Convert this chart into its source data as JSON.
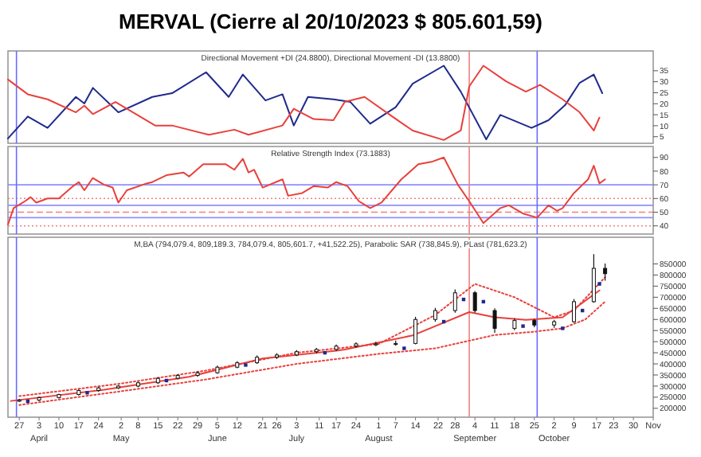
{
  "chart_data": [
    {
      "type": "line",
      "title": "MERVAL (Cierre al 20/10/2023 $ 805.601,59)",
      "subtitle": "Directional Movement +DI (24.8800), Directional Movement -DI (13.8800)",
      "xlim": [
        "2023-03-23",
        "2023-11-06"
      ],
      "ylim": [
        2,
        44
      ],
      "yticks": [
        5,
        10,
        15,
        20,
        25,
        30,
        35
      ],
      "tick_labels": "y",
      "series": [
        {
          "color": "#1f2a8c",
          "x": [
            "2023-03-23",
            "2023-03-30",
            "2023-04-06",
            "2023-04-16",
            "2023-04-19",
            "2023-04-22",
            "2023-05-01",
            "2023-05-13",
            "2023-05-20",
            "2023-06-01",
            "2023-06-09",
            "2023-06-14",
            "2023-06-22",
            "2023-06-28",
            "2023-07-02",
            "2023-07-07",
            "2023-07-16",
            "2023-07-22",
            "2023-07-29",
            "2023-08-07",
            "2023-08-13",
            "2023-08-24",
            "2023-08-30",
            "2023-09-08",
            "2023-09-13",
            "2023-09-24",
            "2023-09-30",
            "2023-10-06",
            "2023-10-11",
            "2023-10-16",
            "2023-10-19"
          ],
          "values": [
            4.2,
            14.2,
            9,
            23.1,
            20.1,
            27.2,
            16.1,
            23.1,
            24.8,
            34.3,
            23.1,
            33.3,
            21.5,
            24.3,
            10.1,
            23.1,
            22,
            20.8,
            10.9,
            18.4,
            29.1,
            37.3,
            25.5,
            3.8,
            14.9,
            9,
            12.5,
            19.6,
            29.5,
            33.3,
            24.8
          ]
        },
        {
          "color": "#e8413c",
          "x": [
            "2023-03-23",
            "2023-03-30",
            "2023-04-06",
            "2023-04-16",
            "2023-04-19",
            "2023-04-22",
            "2023-04-30",
            "2023-05-14",
            "2023-05-20",
            "2023-06-02",
            "2023-06-11",
            "2023-06-16",
            "2023-06-28",
            "2023-07-02",
            "2023-07-09",
            "2023-07-16",
            "2023-07-20",
            "2023-07-27",
            "2023-08-05",
            "2023-08-13",
            "2023-08-24",
            "2023-08-30",
            "2023-09-02",
            "2023-09-07",
            "2023-09-15",
            "2023-09-22",
            "2023-09-27",
            "2023-10-05",
            "2023-10-11",
            "2023-10-16",
            "2023-10-18"
          ],
          "values": [
            31,
            24.3,
            22,
            16.1,
            19.1,
            15.3,
            20.8,
            10.1,
            10.1,
            5.9,
            8.2,
            5.9,
            10.1,
            17.7,
            13,
            12.5,
            20.8,
            23.1,
            14.9,
            7.8,
            3.5,
            7.8,
            27.9,
            37.3,
            30.2,
            25.5,
            28.6,
            22,
            16.1,
            7.8,
            13.7
          ]
        }
      ],
      "ref_lines": [
        {
          "axis": "x",
          "value": "2023-03-26",
          "color": "#6b6bff"
        },
        {
          "axis": "x",
          "value": "2023-09-02",
          "color": "#f08080"
        },
        {
          "axis": "x",
          "value": "2023-09-26",
          "color": "#6b6bff"
        }
      ]
    },
    {
      "type": "line",
      "title": "Relative Strength Index (73.1883)",
      "xlim": [
        "2023-03-23",
        "2023-11-06"
      ],
      "ylim": [
        34,
        98
      ],
      "yticks": [
        40,
        50,
        60,
        70,
        80,
        90
      ],
      "tick_labels": "y",
      "series": [
        {
          "color": "#e8413c",
          "x": [
            "2023-03-23",
            "2023-03-25",
            "2023-03-29",
            "2023-03-31",
            "2023-04-02",
            "2023-04-06",
            "2023-04-10",
            "2023-04-15",
            "2023-04-17",
            "2023-04-19",
            "2023-04-22",
            "2023-04-26",
            "2023-04-29",
            "2023-05-01",
            "2023-05-04",
            "2023-05-11",
            "2023-05-13",
            "2023-05-18",
            "2023-05-24",
            "2023-05-26",
            "2023-05-31",
            "2023-06-08",
            "2023-06-11",
            "2023-06-14",
            "2023-06-16",
            "2023-06-18",
            "2023-06-21",
            "2023-06-28",
            "2023-06-30",
            "2023-07-05",
            "2023-07-09",
            "2023-07-14",
            "2023-07-17",
            "2023-07-21",
            "2023-07-25",
            "2023-07-29",
            "2023-08-02",
            "2023-08-09",
            "2023-08-15",
            "2023-08-20",
            "2023-08-24",
            "2023-08-29",
            "2023-09-02",
            "2023-09-07",
            "2023-09-13",
            "2023-09-16",
            "2023-09-21",
            "2023-09-26",
            "2023-09-30",
            "2023-10-03",
            "2023-10-05",
            "2023-10-09",
            "2023-10-14",
            "2023-10-16",
            "2023-10-18",
            "2023-10-20"
          ],
          "values": [
            41,
            53,
            58,
            61,
            57,
            60,
            60,
            69,
            72,
            66,
            75,
            70,
            68,
            57,
            66,
            71,
            72,
            77,
            79,
            76,
            85,
            85,
            81,
            89,
            79,
            81,
            68,
            74,
            62,
            64,
            69,
            68,
            72,
            69,
            58,
            53,
            57,
            74,
            85,
            87,
            90,
            70,
            58,
            42,
            53,
            55,
            49,
            46,
            55,
            51,
            53,
            64,
            74,
            84,
            71,
            74
          ]
        }
      ],
      "ref_lines": [
        {
          "axis": "y",
          "value": 70,
          "color": "#8f8fff"
        },
        {
          "axis": "y",
          "value": 60,
          "color": "#f08080",
          "line_style": "dotted"
        },
        {
          "axis": "y",
          "value": 55,
          "color": "#8f8fff"
        },
        {
          "axis": "y",
          "value": 50,
          "color": "#f08080",
          "line_style": "dashed"
        },
        {
          "axis": "y",
          "value": 46,
          "color": "#8f8fff"
        },
        {
          "axis": "y",
          "value": 40,
          "color": "#f08080",
          "line_style": "dotted"
        },
        {
          "axis": "x",
          "value": "2023-03-26",
          "color": "#6b6bff"
        },
        {
          "axis": "x",
          "value": "2023-09-02",
          "color": "#f08080"
        },
        {
          "axis": "x",
          "value": "2023-09-26",
          "color": "#6b6bff"
        }
      ]
    },
    {
      "type": "candlestick",
      "title": "M,BA (794,079.4, 809,189.3, 784,079.4, 805,601.7, +41,522.25), Parabolic SAR (738,845.9), PLast (781,623.2)",
      "xlim": [
        "2023-03-23",
        "2023-11-06"
      ],
      "ylim": [
        160000,
        970000
      ],
      "yticks": [
        200000,
        250000,
        300000,
        350000,
        400000,
        450000,
        500000,
        550000,
        600000,
        650000,
        700000,
        750000,
        800000,
        850000
      ],
      "xticks": [
        {
          "value": "2023-03-27",
          "label": "27"
        },
        {
          "value": "2023-04-03",
          "label": "3\nApril"
        },
        {
          "value": "2023-04-10",
          "label": "10"
        },
        {
          "value": "2023-04-17",
          "label": "17"
        },
        {
          "value": "2023-04-24",
          "label": "24"
        },
        {
          "value": "2023-05-02",
          "label": "2\nMay"
        },
        {
          "value": "2023-05-08",
          "label": "8"
        },
        {
          "value": "2023-05-15",
          "label": "15"
        },
        {
          "value": "2023-05-22",
          "label": "22"
        },
        {
          "value": "2023-05-29",
          "label": "29"
        },
        {
          "value": "2023-06-05",
          "label": "5\nJune"
        },
        {
          "value": "2023-06-12",
          "label": "12"
        },
        {
          "value": "2023-06-21",
          "label": "21"
        },
        {
          "value": "2023-06-26",
          "label": "26"
        },
        {
          "value": "2023-07-03",
          "label": "3\nJuly"
        },
        {
          "value": "2023-07-11",
          "label": "11"
        },
        {
          "value": "2023-07-17",
          "label": "17"
        },
        {
          "value": "2023-07-24",
          "label": "24"
        },
        {
          "value": "2023-08-01",
          "label": "1\nAugust"
        },
        {
          "value": "2023-08-07",
          "label": "7"
        },
        {
          "value": "2023-08-14",
          "label": "14"
        },
        {
          "value": "2023-08-22",
          "label": "22"
        },
        {
          "value": "2023-08-28",
          "label": "28"
        },
        {
          "value": "2023-09-04",
          "label": "4\nSeptember"
        },
        {
          "value": "2023-09-11",
          "label": "11"
        },
        {
          "value": "2023-09-18",
          "label": "18"
        },
        {
          "value": "2023-09-25",
          "label": "25"
        },
        {
          "value": "2023-10-02",
          "label": "2\nOctober"
        },
        {
          "value": "2023-10-09",
          "label": "9"
        },
        {
          "value": "2023-10-17",
          "label": "17"
        },
        {
          "value": "2023-10-23",
          "label": "23"
        },
        {
          "value": "2023-10-30",
          "label": "30"
        },
        {
          "value": "2023-11-06",
          "label": "Nov"
        }
      ],
      "x": [
        "2023-03-27",
        "2023-04-03",
        "2023-04-10",
        "2023-04-17",
        "2023-04-24",
        "2023-05-01",
        "2023-05-08",
        "2023-05-15",
        "2023-05-22",
        "2023-05-29",
        "2023-06-05",
        "2023-06-12",
        "2023-06-19",
        "2023-06-26",
        "2023-07-03",
        "2023-07-10",
        "2023-07-17",
        "2023-07-24",
        "2023-07-31",
        "2023-08-07",
        "2023-08-14",
        "2023-08-21",
        "2023-08-28",
        "2023-09-04",
        "2023-09-11",
        "2023-09-18",
        "2023-09-25",
        "2023-10-02",
        "2023-10-09",
        "2023-10-16",
        "2023-10-20"
      ],
      "ohlc": [
        [
          232000,
          242000,
          228000,
          237000
        ],
        [
          237000,
          252000,
          233000,
          248000
        ],
        [
          248000,
          266000,
          244000,
          262000
        ],
        [
          262000,
          285000,
          258000,
          280000
        ],
        [
          280000,
          297000,
          275000,
          292000
        ],
        [
          292000,
          305000,
          287000,
          300000
        ],
        [
          300000,
          320000,
          295000,
          315000
        ],
        [
          315000,
          340000,
          310000,
          335000
        ],
        [
          335000,
          353000,
          330000,
          348000
        ],
        [
          348000,
          366000,
          342000,
          360000
        ],
        [
          360000,
          392000,
          355000,
          385000
        ],
        [
          385000,
          412000,
          380000,
          405000
        ],
        [
          405000,
          438000,
          400000,
          430000
        ],
        [
          430000,
          448000,
          422000,
          440000
        ],
        [
          440000,
          462000,
          435000,
          455000
        ],
        [
          455000,
          472000,
          448000,
          465000
        ],
        [
          465000,
          487000,
          458000,
          480000
        ],
        [
          480000,
          497000,
          473000,
          490000
        ],
        [
          490000,
          500000,
          480000,
          490000
        ],
        [
          490000,
          505000,
          482000,
          492000
        ],
        [
          492000,
          612000,
          488000,
          600000
        ],
        [
          600000,
          652000,
          590000,
          640000
        ],
        [
          640000,
          735000,
          630000,
          720000
        ],
        [
          720000,
          728000,
          630000,
          640000
        ],
        [
          640000,
          650000,
          540000,
          560000
        ],
        [
          560000,
          605000,
          552000,
          595000
        ],
        [
          595000,
          602000,
          565000,
          575000
        ],
        [
          575000,
          598000,
          562000,
          590000
        ],
        [
          590000,
          692000,
          585000,
          680000
        ],
        [
          680000,
          894000,
          675000,
          830000
        ],
        [
          830000,
          852000,
          775000,
          806000
        ]
      ],
      "series": [
        {
          "type": "line",
          "color": "#e8413c",
          "line_style": "solid",
          "x": [
            "2023-03-24",
            "2023-04-26",
            "2023-05-26",
            "2023-06-21",
            "2023-07-17",
            "2023-07-20",
            "2023-08-13",
            "2023-09-02",
            "2023-09-11",
            "2023-09-22",
            "2023-10-05",
            "2023-10-18"
          ],
          "values": [
            233000,
            284000,
            342000,
            424000,
            459000,
            465000,
            528000,
            633000,
            610000,
            598000,
            610000,
            731000
          ]
        },
        {
          "type": "line",
          "color": "#e8413c",
          "line_style": "dotted",
          "x": [
            "2023-03-27",
            "2023-05-01",
            "2023-06-01",
            "2023-07-03",
            "2023-08-01",
            "2023-08-21",
            "2023-09-04",
            "2023-09-18",
            "2023-10-02",
            "2023-10-09",
            "2023-10-20"
          ],
          "values": [
            255000,
            310000,
            370000,
            450000,
            490000,
            620000,
            760000,
            700000,
            610000,
            640000,
            790000
          ]
        },
        {
          "type": "line",
          "color": "#e8413c",
          "line_style": "dotted",
          "x": [
            "2023-03-27",
            "2023-05-01",
            "2023-06-01",
            "2023-07-03",
            "2023-08-01",
            "2023-08-21",
            "2023-09-11",
            "2023-09-25",
            "2023-10-05",
            "2023-10-13",
            "2023-10-20"
          ],
          "values": [
            215000,
            275000,
            330000,
            400000,
            445000,
            470000,
            530000,
            545000,
            560000,
            600000,
            680000
          ]
        },
        {
          "type": "scatter",
          "color": "#1f2a8c",
          "marker": "square",
          "x": [
            "2023-03-30",
            "2023-04-20",
            "2023-05-18",
            "2023-06-15",
            "2023-07-13",
            "2023-08-10",
            "2023-08-24",
            "2023-08-31",
            "2023-09-07",
            "2023-09-21",
            "2023-10-05",
            "2023-10-12",
            "2023-10-18"
          ],
          "values": [
            232000,
            270000,
            325000,
            395000,
            450000,
            470000,
            590000,
            690000,
            680000,
            570000,
            560000,
            640000,
            760000
          ]
        }
      ],
      "ref_lines": [
        {
          "axis": "x",
          "value": "2023-03-26",
          "color": "#6b6bff"
        },
        {
          "axis": "x",
          "value": "2023-09-02",
          "color": "#f08080"
        },
        {
          "axis": "x",
          "value": "2023-09-26",
          "color": "#6b6bff"
        }
      ]
    }
  ]
}
